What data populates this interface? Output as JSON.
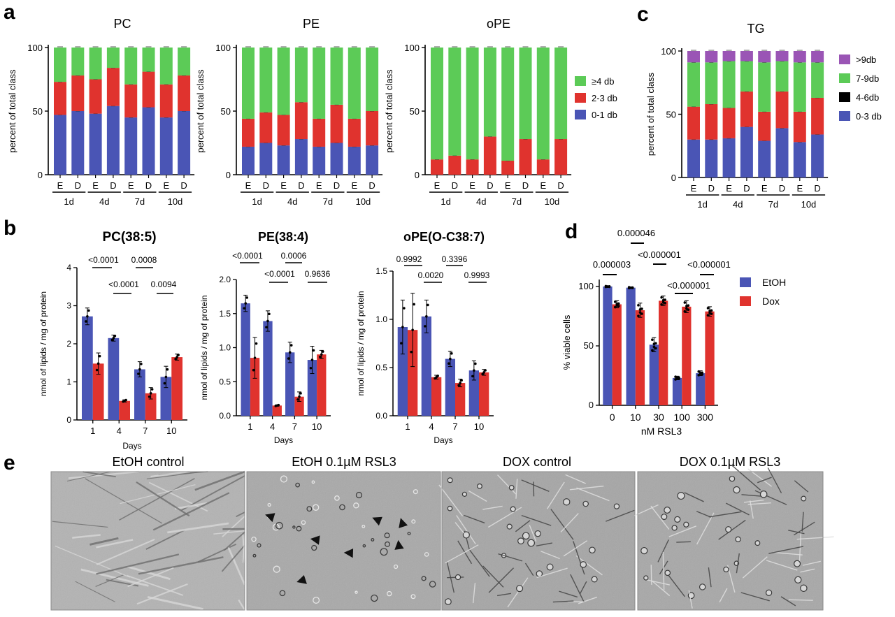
{
  "panel_letters": [
    "a",
    "b",
    "c",
    "d",
    "e"
  ],
  "colors": {
    "blue": "#4a55b5",
    "red": "#e0332e",
    "green": "#5ccb57",
    "purple": "#9a55b5",
    "axis": "#000000"
  },
  "chart_data": [
    {
      "type": "bar",
      "stacked": true,
      "title": "PC",
      "ylabel": "percent of total class",
      "ylim": [
        0,
        100
      ],
      "yticks": [
        0,
        50,
        100
      ],
      "categories": [
        "E",
        "D",
        "E",
        "D",
        "E",
        "D",
        "E",
        "D"
      ],
      "groups": [
        "1d",
        "4d",
        "7d",
        "10d"
      ],
      "series": [
        {
          "name": "0-1 db",
          "values": [
            47,
            50,
            48,
            54,
            45,
            53,
            45,
            50
          ]
        },
        {
          "name": "2-3 db",
          "values": [
            26,
            28,
            27,
            30,
            26,
            28,
            26,
            28
          ]
        },
        {
          "name": "≥4 db",
          "values": [
            27,
            22,
            25,
            16,
            29,
            19,
            29,
            22
          ]
        }
      ]
    },
    {
      "type": "bar",
      "stacked": true,
      "title": "PE",
      "ylabel": "percent of total class",
      "ylim": [
        0,
        100
      ],
      "yticks": [
        0,
        50,
        100
      ],
      "categories": [
        "E",
        "D",
        "E",
        "D",
        "E",
        "D",
        "E",
        "D"
      ],
      "groups": [
        "1d",
        "4d",
        "7d",
        "10d"
      ],
      "series": [
        {
          "name": "0-1 db",
          "values": [
            22,
            25,
            23,
            28,
            22,
            25,
            22,
            23
          ]
        },
        {
          "name": "2-3 db",
          "values": [
            22,
            24,
            24,
            29,
            22,
            30,
            22,
            27
          ]
        },
        {
          "name": "≥4 db",
          "values": [
            56,
            51,
            53,
            43,
            56,
            45,
            56,
            50
          ]
        }
      ]
    },
    {
      "type": "bar",
      "stacked": true,
      "title": "oPE",
      "ylabel": "percent of total class",
      "ylim": [
        0,
        100
      ],
      "yticks": [
        0,
        50,
        100
      ],
      "categories": [
        "E",
        "D",
        "E",
        "D",
        "E",
        "D",
        "E",
        "D"
      ],
      "groups": [
        "1d",
        "4d",
        "7d",
        "10d"
      ],
      "series": [
        {
          "name": "0-1 db",
          "values": [
            0,
            0,
            0,
            0,
            0,
            0,
            0,
            0
          ]
        },
        {
          "name": "2-3 db",
          "values": [
            12,
            15,
            12,
            30,
            11,
            28,
            12,
            28
          ]
        },
        {
          "name": "≥4 db",
          "values": [
            88,
            85,
            88,
            70,
            89,
            72,
            88,
            72
          ]
        }
      ],
      "legend": [
        "≥4 db",
        "2-3 db",
        "0-1 db"
      ]
    },
    {
      "type": "bar",
      "stacked": true,
      "title": "TG",
      "ylabel": "percent of total class",
      "ylim": [
        0,
        100
      ],
      "yticks": [
        0,
        50,
        100
      ],
      "categories": [
        "E",
        "D",
        "E",
        "D",
        "E",
        "D",
        "E",
        "D"
      ],
      "groups": [
        "1d",
        "4d",
        "7d",
        "10d"
      ],
      "series": [
        {
          "name": "0-3 db",
          "values": [
            30,
            30,
            31,
            40,
            29,
            39,
            28,
            34
          ]
        },
        {
          "name": "4-6 db",
          "values": [
            26,
            28,
            24,
            28,
            23,
            29,
            24,
            29
          ]
        },
        {
          "name": "7-9db",
          "values": [
            35,
            33,
            37,
            24,
            39,
            24,
            39,
            28
          ]
        },
        {
          "name": ">9db",
          "values": [
            9,
            9,
            8,
            8,
            9,
            8,
            9,
            9
          ]
        }
      ],
      "legend": [
        ">9db",
        "7-9db",
        "4-6db",
        "0-3 db"
      ]
    },
    {
      "type": "bar",
      "title": "PC(38:5)",
      "xlabel": "Days",
      "ylabel": "nmol of lipids / mg of protein",
      "ylim": [
        0,
        4
      ],
      "yticks": [
        "0",
        "1",
        "2",
        "3",
        "4"
      ],
      "categories": [
        "1",
        "4",
        "7",
        "10"
      ],
      "series": [
        {
          "values": [
            2.72,
            2.15,
            1.33,
            1.13
          ],
          "errors": [
            0.22,
            0.08,
            0.2,
            0.28
          ]
        },
        {
          "values": [
            1.48,
            0.5,
            0.7,
            1.65
          ],
          "errors": [
            0.28,
            0.03,
            0.15,
            0.08
          ]
        }
      ],
      "pvalues": [
        "<0.0001",
        "<0.0001",
        "0.0008",
        "0.0094"
      ]
    },
    {
      "type": "bar",
      "title": "PE(38:4)",
      "xlabel": "Days",
      "ylabel": "nmol of lipids / mg of protein",
      "ylim": [
        0,
        2
      ],
      "yticks": [
        "0.0",
        "0.5",
        "1.0",
        "1.5",
        "2.0"
      ],
      "categories": [
        "1",
        "4",
        "7",
        "10"
      ],
      "series": [
        {
          "values": [
            1.65,
            1.39,
            0.93,
            0.82
          ],
          "errors": [
            0.12,
            0.15,
            0.15,
            0.2
          ]
        },
        {
          "values": [
            0.85,
            0.15,
            0.28,
            0.9
          ],
          "errors": [
            0.3,
            0.01,
            0.07,
            0.06
          ]
        }
      ],
      "pvalues": [
        "<0.0001",
        "<0.0001",
        "0.0006",
        "0.9636"
      ]
    },
    {
      "type": "bar",
      "title": "oPE(O-C38:7)",
      "xlabel": "Days",
      "ylabel": "nmol of lipids / mg of protein",
      "ylim": [
        0,
        1.5
      ],
      "yticks": [
        "0.0",
        "0.5",
        "1.0",
        "1.5"
      ],
      "categories": [
        "1",
        "4",
        "7",
        "10"
      ],
      "series": [
        {
          "values": [
            0.92,
            1.03,
            0.59,
            0.47
          ],
          "errors": [
            0.28,
            0.17,
            0.08,
            0.1
          ]
        },
        {
          "values": [
            0.89,
            0.4,
            0.34,
            0.45
          ],
          "errors": [
            0.38,
            0.02,
            0.04,
            0.03
          ]
        }
      ],
      "pvalues": [
        "0.9992",
        "0.0020",
        "0.3396",
        "0.9993"
      ]
    },
    {
      "type": "bar",
      "xlabel": "nM RSL3",
      "ylabel": "% viable cells",
      "ylim": [
        0,
        100
      ],
      "yticks": [
        "0",
        "50",
        "100"
      ],
      "categories": [
        "0",
        "10",
        "30",
        "100",
        "300"
      ],
      "series": [
        {
          "name": "EtOH",
          "values": [
            100,
            99,
            51,
            23,
            27
          ],
          "errors": [
            0.5,
            0.5,
            6,
            1.5,
            2
          ]
        },
        {
          "name": "Dox",
          "values": [
            85,
            80,
            88,
            83,
            79
          ],
          "errors": [
            3,
            6,
            4,
            5,
            4
          ]
        }
      ],
      "pvalues": [
        "0.000003",
        "0.000046",
        "<0.000001",
        "<0.000001",
        "<0.000001"
      ]
    }
  ],
  "micrographs": [
    {
      "title": "EtOH control"
    },
    {
      "title": "EtOH 0.1µM RSL3"
    },
    {
      "title": "DOX control"
    },
    {
      "title": "DOX 0.1µM RSL3"
    }
  ]
}
